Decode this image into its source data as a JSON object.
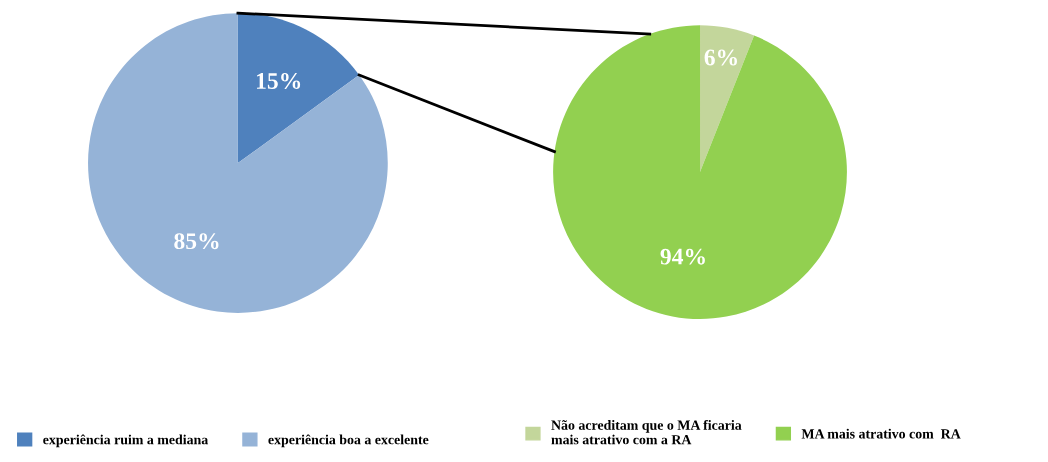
{
  "chart_data": [
    {
      "type": "pie",
      "categories": [
        "experiência ruim a mediana",
        "experiência boa a excelente"
      ],
      "values": [
        15,
        85
      ],
      "colors": [
        "#4f81bd",
        "#95b3d7"
      ],
      "value_labels": [
        "15%",
        "85%"
      ],
      "legend": "bottom"
    },
    {
      "type": "pie",
      "categories": [
        "Não acreditam que o MA ficaria\nmais atrativo com a RA",
        "MA mais atrativo com  RA"
      ],
      "values": [
        6,
        94
      ],
      "colors": [
        "#c3d69b",
        "#92d050"
      ],
      "value_labels": [
        "6%",
        "94%"
      ],
      "legend": "bottom"
    }
  ]
}
